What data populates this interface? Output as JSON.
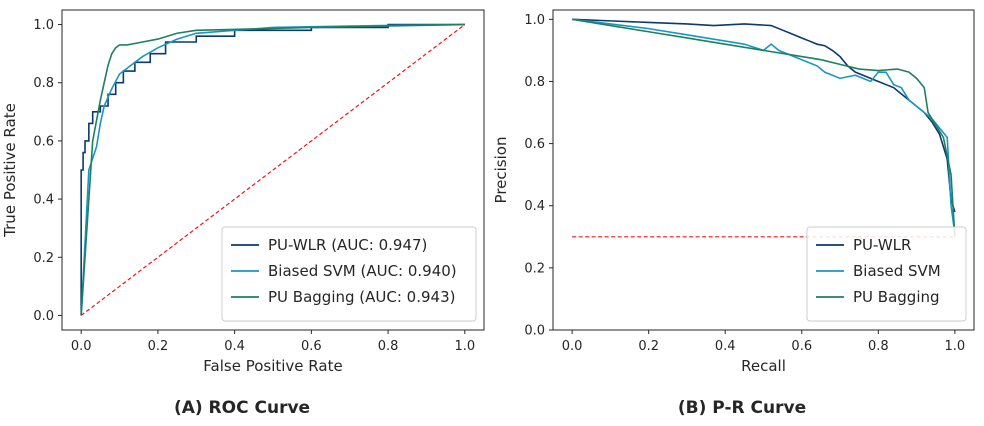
{
  "colors": {
    "pu_wlr": "#0b3a6b",
    "biased_svm": "#1b96c2",
    "pu_bagging": "#1f8060",
    "baseline": "#e8191d",
    "frame": "#262626"
  },
  "chart_data": [
    {
      "type": "line",
      "panel": "A",
      "caption": "(A) ROC Curve",
      "xlabel": "False Positive Rate",
      "ylabel": "True Positive Rate",
      "xlim": [
        -0.05,
        1.05
      ],
      "ylim": [
        -0.05,
        1.05
      ],
      "xticks": [
        "0.0",
        "0.2",
        "0.4",
        "0.6",
        "0.8",
        "1.0"
      ],
      "yticks": [
        "0.0",
        "0.2",
        "0.4",
        "0.6",
        "0.8",
        "1.0"
      ],
      "grid": false,
      "legend_position": "bottom-right",
      "series": [
        {
          "name": "PU-WLR (AUC: 0.947)",
          "color_key": "pu_wlr",
          "x": [
            0,
            0,
            0.005,
            0.005,
            0.01,
            0.01,
            0.02,
            0.02,
            0.03,
            0.03,
            0.05,
            0.05,
            0.07,
            0.07,
            0.09,
            0.09,
            0.11,
            0.11,
            0.14,
            0.14,
            0.18,
            0.18,
            0.22,
            0.22,
            0.3,
            0.3,
            0.4,
            0.4,
            0.6,
            0.6,
            0.8,
            0.8,
            1.0
          ],
          "y": [
            0,
            0.5,
            0.5,
            0.56,
            0.56,
            0.6,
            0.6,
            0.66,
            0.66,
            0.7,
            0.7,
            0.72,
            0.72,
            0.76,
            0.76,
            0.8,
            0.8,
            0.84,
            0.84,
            0.87,
            0.87,
            0.9,
            0.9,
            0.94,
            0.94,
            0.96,
            0.96,
            0.98,
            0.98,
            0.99,
            0.99,
            1.0,
            1.0
          ]
        },
        {
          "name": "Biased SVM (AUC: 0.940)",
          "color_key": "biased_svm",
          "x": [
            0,
            0.02,
            0.04,
            0.05,
            0.06,
            0.08,
            0.1,
            0.13,
            0.16,
            0.2,
            0.25,
            0.3,
            0.4,
            0.5,
            0.7,
            1.0
          ],
          "y": [
            0,
            0.5,
            0.58,
            0.66,
            0.72,
            0.78,
            0.83,
            0.86,
            0.89,
            0.92,
            0.95,
            0.97,
            0.98,
            0.99,
            0.995,
            1.0
          ]
        },
        {
          "name": "PU Bagging (AUC: 0.943)",
          "color_key": "pu_bagging",
          "x": [
            0,
            0.03,
            0.05,
            0.06,
            0.07,
            0.08,
            0.09,
            0.1,
            0.12,
            0.16,
            0.2,
            0.25,
            0.3,
            0.45,
            0.6,
            0.8,
            1.0
          ],
          "y": [
            0,
            0.6,
            0.74,
            0.8,
            0.86,
            0.9,
            0.92,
            0.93,
            0.93,
            0.94,
            0.95,
            0.97,
            0.98,
            0.985,
            0.99,
            0.995,
            1.0
          ]
        },
        {
          "name": "",
          "color_key": "baseline",
          "dashed": true,
          "x": [
            0,
            1
          ],
          "y": [
            0,
            1
          ]
        }
      ]
    },
    {
      "type": "line",
      "panel": "B",
      "caption": "(B) P-R Curve",
      "xlabel": "Recall",
      "ylabel": "Precision",
      "xlim": [
        -0.05,
        1.05
      ],
      "ylim": [
        0.0,
        1.03
      ],
      "xticks": [
        "0.0",
        "0.2",
        "0.4",
        "0.6",
        "0.8",
        "1.0"
      ],
      "yticks": [
        "0.0",
        "0.2",
        "0.4",
        "0.6",
        "0.8",
        "1.0"
      ],
      "grid": false,
      "legend_position": "bottom-right",
      "series": [
        {
          "name": "PU-WLR",
          "color_key": "pu_wlr",
          "x": [
            0,
            0.1,
            0.2,
            0.3,
            0.37,
            0.45,
            0.52,
            0.55,
            0.57,
            0.6,
            0.62,
            0.64,
            0.66,
            0.68,
            0.7,
            0.72,
            0.74,
            0.76,
            0.78,
            0.8,
            0.82,
            0.84,
            0.86,
            0.88,
            0.9,
            0.92,
            0.94,
            0.96,
            0.98,
            0.99,
            1.0
          ],
          "y": [
            1.0,
            0.995,
            0.99,
            0.985,
            0.98,
            0.985,
            0.98,
            0.965,
            0.955,
            0.94,
            0.93,
            0.92,
            0.915,
            0.9,
            0.88,
            0.85,
            0.83,
            0.82,
            0.81,
            0.8,
            0.79,
            0.78,
            0.76,
            0.74,
            0.72,
            0.7,
            0.67,
            0.63,
            0.55,
            0.42,
            0.38
          ]
        },
        {
          "name": "Biased SVM",
          "color_key": "biased_svm",
          "x": [
            0,
            0.1,
            0.2,
            0.3,
            0.4,
            0.45,
            0.5,
            0.52,
            0.54,
            0.56,
            0.6,
            0.64,
            0.66,
            0.68,
            0.7,
            0.74,
            0.78,
            0.8,
            0.82,
            0.84,
            0.86,
            0.88,
            0.9,
            0.92,
            0.94,
            0.96,
            0.98,
            0.99,
            1.0
          ],
          "y": [
            1.0,
            0.985,
            0.97,
            0.95,
            0.93,
            0.92,
            0.9,
            0.92,
            0.9,
            0.89,
            0.87,
            0.85,
            0.83,
            0.82,
            0.81,
            0.82,
            0.8,
            0.83,
            0.83,
            0.79,
            0.78,
            0.74,
            0.72,
            0.7,
            0.68,
            0.65,
            0.62,
            0.4,
            0.31
          ]
        },
        {
          "name": "PU Bagging",
          "color_key": "pu_bagging",
          "x": [
            0,
            0.1,
            0.2,
            0.3,
            0.4,
            0.5,
            0.6,
            0.65,
            0.7,
            0.75,
            0.8,
            0.85,
            0.88,
            0.9,
            0.92,
            0.93,
            0.95,
            0.97,
            0.99,
            1.0
          ],
          "y": [
            1.0,
            0.98,
            0.96,
            0.94,
            0.92,
            0.9,
            0.88,
            0.87,
            0.855,
            0.84,
            0.835,
            0.84,
            0.83,
            0.81,
            0.78,
            0.7,
            0.66,
            0.62,
            0.5,
            0.3
          ]
        },
        {
          "name": "",
          "color_key": "baseline",
          "dashed": true,
          "x": [
            0,
            1
          ],
          "y": [
            0.3,
            0.3
          ]
        }
      ]
    }
  ]
}
